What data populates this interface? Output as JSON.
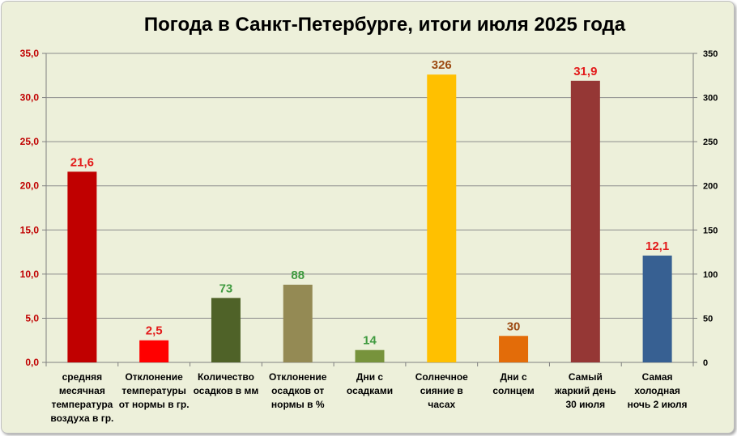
{
  "chart_data": {
    "type": "bar",
    "title": "Погода в Санкт-Петербурге, итоги июля 2025 года",
    "y_left": {
      "ticks": [
        "0,0",
        "5,0",
        "10,0",
        "15,0",
        "20,0",
        "25,0",
        "30,0",
        "35,0"
      ],
      "ylim": [
        0,
        35
      ]
    },
    "y_right": {
      "ticks": [
        "0",
        "50",
        "100",
        "150",
        "200",
        "250",
        "300",
        "350"
      ],
      "ylim": [
        0,
        350
      ]
    },
    "grid": true,
    "bars": [
      {
        "category": [
          "средняя",
          "месячная",
          "температура",
          "воздуха в гр."
        ],
        "value": 21.6,
        "label": "21,6",
        "axis": "left",
        "color": "#c00000",
        "label_color": "#e31b1b"
      },
      {
        "category": [
          "Отклонение",
          "температуры",
          "от нормы в гр."
        ],
        "value": 2.5,
        "label": "2,5",
        "axis": "left",
        "color": "#ff0000",
        "label_color": "#e31b1b"
      },
      {
        "category": [
          "Количество",
          "осадков в мм"
        ],
        "value": 73,
        "label": "73",
        "axis": "right",
        "color": "#4f6228",
        "label_color": "#3f9a3f"
      },
      {
        "category": [
          "Отклонение",
          "осадков от",
          "нормы в %"
        ],
        "value": 88,
        "label": "88",
        "axis": "right",
        "color": "#948a54",
        "label_color": "#3f9a3f"
      },
      {
        "category": [
          "Дни с",
          "осадками"
        ],
        "value": 14,
        "label": "14",
        "axis": "right",
        "color": "#77933c",
        "label_color": "#3f9a3f"
      },
      {
        "category": [
          "Солнечное",
          "сияние в",
          "часах"
        ],
        "value": 326,
        "label": "326",
        "axis": "right",
        "color": "#ffc000",
        "label_color": "#9c4a12"
      },
      {
        "category": [
          "Дни с",
          "солнцем"
        ],
        "value": 30,
        "label": "30",
        "axis": "right",
        "color": "#e36c09",
        "label_color": "#9c4a12"
      },
      {
        "category": [
          "Самый",
          "жаркий день",
          "30 июля"
        ],
        "value": 31.9,
        "label": "31,9",
        "axis": "left",
        "color": "#953735",
        "label_color": "#e31b1b"
      },
      {
        "category": [
          "Самая",
          "холодная",
          "ночь 2 июля"
        ],
        "value": 12.1,
        "label": "12,1",
        "axis": "left",
        "color": "#376092",
        "label_color": "#e31b1b"
      }
    ]
  }
}
